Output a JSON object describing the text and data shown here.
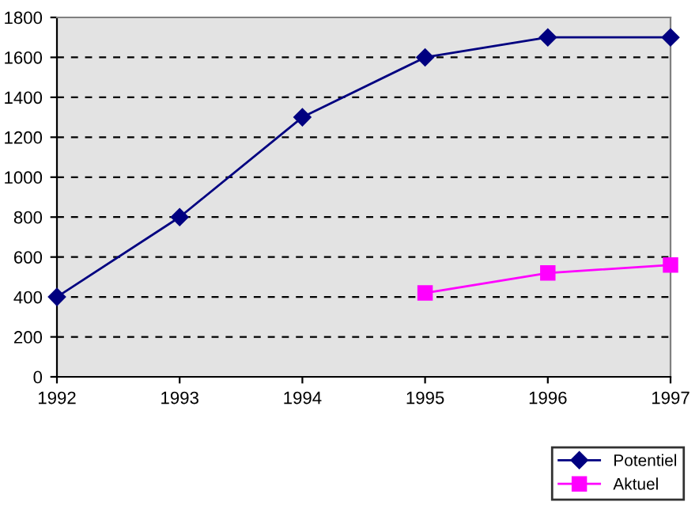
{
  "chart_data": {
    "type": "line",
    "x": [
      1992,
      1993,
      1994,
      1995,
      1996,
      1997
    ],
    "series": [
      {
        "name": "Potentiel",
        "color": "#000080",
        "marker": "diamond",
        "values": [
          400,
          800,
          1300,
          1600,
          1700,
          1700
        ]
      },
      {
        "name": "Aktuel",
        "color": "#ff00ff",
        "marker": "square",
        "values": [
          null,
          null,
          null,
          420,
          520,
          560
        ]
      }
    ],
    "xlim": [
      1992,
      1997
    ],
    "xticks": [
      1992,
      1993,
      1994,
      1995,
      1996,
      1997
    ],
    "ylim": [
      0,
      1800
    ],
    "yticks": [
      0,
      200,
      400,
      600,
      800,
      1000,
      1200,
      1400,
      1600,
      1800
    ],
    "grid": "y",
    "legend": "bottom right"
  }
}
